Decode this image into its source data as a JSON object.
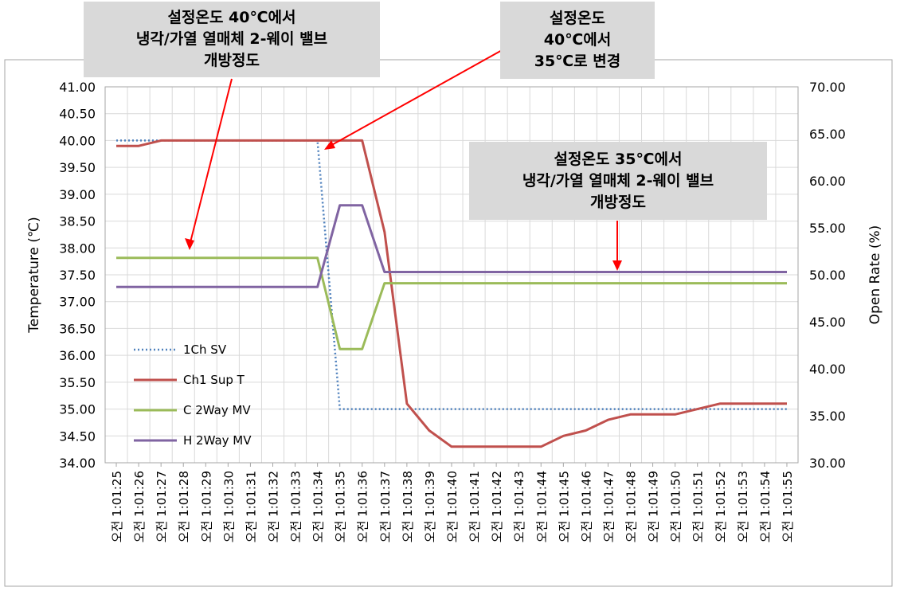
{
  "chart_data": {
    "type": "line",
    "title": "",
    "ylabel": "Temperature (℃)",
    "y2label": "Open Rate (%)",
    "ylim": [
      34.0,
      41.0
    ],
    "y2lim": [
      30.0,
      70.0
    ],
    "yticks": [
      "34.00",
      "34.50",
      "35.00",
      "35.50",
      "36.00",
      "36.50",
      "37.00",
      "37.50",
      "38.00",
      "38.50",
      "39.00",
      "39.50",
      "40.00",
      "40.50",
      "41.00"
    ],
    "y2ticks": [
      "30.00",
      "35.00",
      "40.00",
      "45.00",
      "50.00",
      "55.00",
      "60.00",
      "65.00",
      "70.00"
    ],
    "grid": true,
    "legend": "middle-left",
    "categories": [
      "오전 1:01:25",
      "오전 1:01:26",
      "오전 1:01:27",
      "오전 1:01:28",
      "오전 1:01:29",
      "오전 1:01:30",
      "오전 1:01:31",
      "오전 1:01:32",
      "오전 1:01:33",
      "오전 1:01:34",
      "오전 1:01:35",
      "오전 1:01:36",
      "오전 1:01:37",
      "오전 1:01:38",
      "오전 1:01:39",
      "오전 1:01:40",
      "오전 1:01:41",
      "오전 1:01:42",
      "오전 1:01:43",
      "오전 1:01:44",
      "오전 1:01:45",
      "오전 1:01:46",
      "오전 1:01:47",
      "오전 1:01:48",
      "오전 1:01:49",
      "오전 1:01:50",
      "오전 1:01:51",
      "오전 1:01:52",
      "오전 1:01:53",
      "오전 1:01:54",
      "오전 1:01:55"
    ],
    "series": [
      {
        "name": "1Ch SV",
        "axis": "left",
        "color": "#4f81bd",
        "style": "dotted",
        "x": [
          0,
          9,
          10,
          30
        ],
        "values": [
          40.0,
          40.0,
          35.0,
          35.0
        ]
      },
      {
        "name": "Ch1 Sup T",
        "axis": "left",
        "color": "#c0504d",
        "style": "solid",
        "x": [
          0,
          1,
          2,
          3,
          4,
          5,
          6,
          7,
          8,
          9,
          10,
          11,
          12,
          13,
          14,
          15,
          16,
          17,
          18,
          19,
          20,
          21,
          22,
          23,
          24,
          25,
          26,
          27,
          28,
          29,
          30
        ],
        "values": [
          39.9,
          39.9,
          40.0,
          40.0,
          40.0,
          40.0,
          40.0,
          40.0,
          40.0,
          40.0,
          40.0,
          40.0,
          38.3,
          35.1,
          34.6,
          34.3,
          34.3,
          34.3,
          34.3,
          34.3,
          34.5,
          34.6,
          34.8,
          34.9,
          34.9,
          34.9,
          35.0,
          35.1,
          35.1,
          35.1,
          35.1
        ]
      },
      {
        "name": "C 2Way MV",
        "axis": "right",
        "color": "#9bbb59",
        "style": "solid",
        "x": [
          0,
          9,
          10,
          11,
          12,
          30
        ],
        "values": [
          51.8,
          51.8,
          42.1,
          42.1,
          49.1,
          49.1
        ]
      },
      {
        "name": "H 2Way MV",
        "axis": "right",
        "color": "#8064a2",
        "style": "solid",
        "x": [
          0,
          9,
          10,
          11,
          12,
          30
        ],
        "values": [
          48.7,
          48.7,
          57.4,
          57.4,
          50.3,
          50.3
        ]
      }
    ],
    "annotations": [
      {
        "lines": [
          "설정온도 40℃에서",
          "냉각/가열 열매체 2-웨이 밸브",
          "개방정도"
        ]
      },
      {
        "lines": [
          "설정온도",
          "40℃에서",
          "35℃로 변경"
        ]
      },
      {
        "lines": [
          "설정온도 35℃에서",
          "냉각/가열 열매체 2-웨이 밸브",
          "개방정도"
        ]
      }
    ]
  }
}
